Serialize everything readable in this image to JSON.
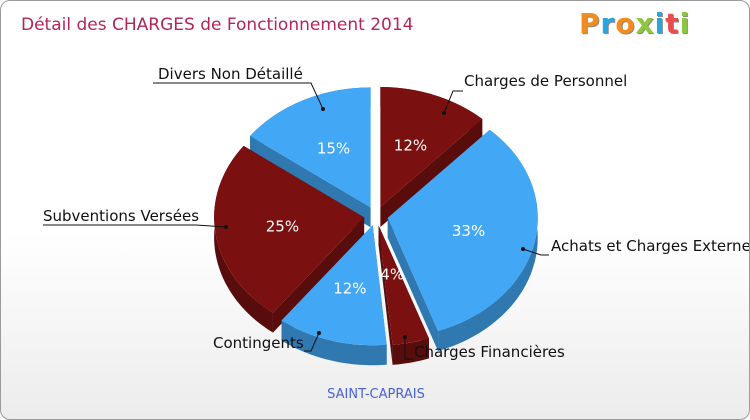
{
  "header": {
    "title": "Détail des CHARGES de Fonctionnement 2014",
    "logo_letters": [
      {
        "char": "P",
        "color": "#f28c1e"
      },
      {
        "char": "r",
        "color": "#29a5e1"
      },
      {
        "char": "o",
        "color": "#f28c1e"
      },
      {
        "char": "x",
        "color": "#8dc63f"
      },
      {
        "char": "i",
        "color": "#29a5e1"
      },
      {
        "char": "t",
        "color": "#e84e4e"
      },
      {
        "char": "i",
        "color": "#8dc63f"
      }
    ]
  },
  "chart_data": {
    "type": "pie",
    "title": "Détail des CHARGES de Fonctionnement 2014",
    "subtitle": "SAINT-CAPRAIS",
    "style": "3d-exploded",
    "colors": {
      "blue": "#42a7f4",
      "dark_red": "#7a1010"
    },
    "slices": [
      {
        "label": "Charges de Personnel",
        "percent": 12,
        "value_label": "12%",
        "color": "#7a1010"
      },
      {
        "label": "Achats et Charges Externes",
        "percent": 33,
        "value_label": "33%",
        "color": "#42a7f4"
      },
      {
        "label": "Charges Financières",
        "percent": 4,
        "value_label": "4%",
        "color": "#7a1010"
      },
      {
        "label": "Contingents",
        "percent": 12,
        "value_label": "12%",
        "color": "#42a7f4"
      },
      {
        "label": "Subventions Versées",
        "percent": 25,
        "value_label": "25%",
        "color": "#7a1010"
      },
      {
        "label": "Divers Non Détaillé",
        "percent": 15,
        "value_label": "15%",
        "color": "#42a7f4"
      }
    ]
  }
}
